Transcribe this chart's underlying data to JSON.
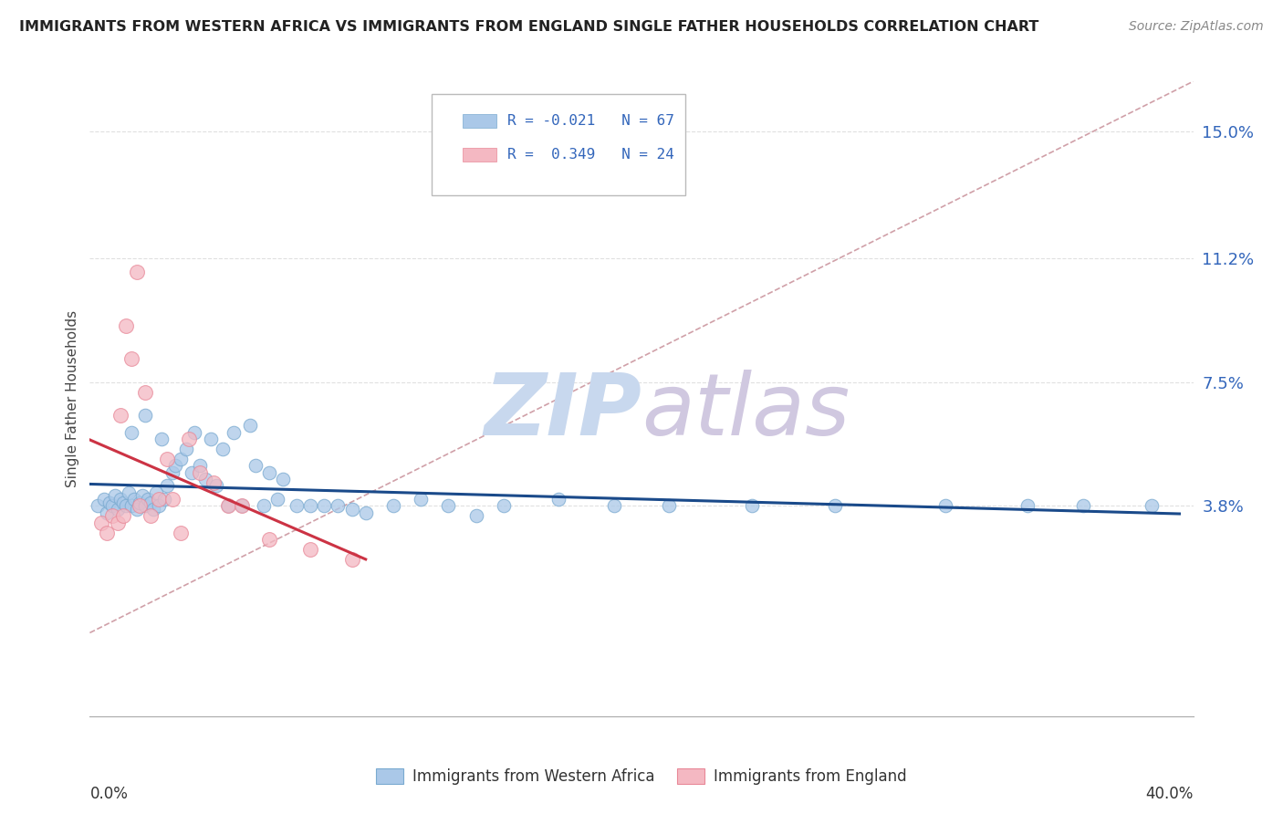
{
  "title": "IMMIGRANTS FROM WESTERN AFRICA VS IMMIGRANTS FROM ENGLAND SINGLE FATHER HOUSEHOLDS CORRELATION CHART",
  "source": "Source: ZipAtlas.com",
  "ylabel": "Single Father Households",
  "ytick_labels": [
    "3.8%",
    "7.5%",
    "11.2%",
    "15.0%"
  ],
  "ytick_values": [
    0.038,
    0.075,
    0.112,
    0.15
  ],
  "xlim": [
    0.0,
    0.4
  ],
  "ylim": [
    -0.025,
    0.165
  ],
  "legend_blue_R": "R = -0.021",
  "legend_blue_N": "N = 67",
  "legend_pink_R": "R =  0.349",
  "legend_pink_N": "N = 24",
  "blue_color": "#aac8e8",
  "pink_color": "#f4b8c2",
  "blue_scatter_edge": "#7aaad0",
  "pink_scatter_edge": "#e88898",
  "blue_line_color": "#1a4a8a",
  "pink_line_color": "#cc3344",
  "ref_line_color": "#d0a0a8",
  "watermark_zip_color": "#c8d8ee",
  "watermark_atlas_color": "#d0c8e0",
  "grid_color": "#e0e0e0",
  "blue_scatter_x": [
    0.003,
    0.005,
    0.006,
    0.007,
    0.008,
    0.009,
    0.01,
    0.011,
    0.012,
    0.013,
    0.014,
    0.015,
    0.015,
    0.016,
    0.017,
    0.018,
    0.019,
    0.02,
    0.02,
    0.021,
    0.022,
    0.023,
    0.024,
    0.025,
    0.026,
    0.027,
    0.028,
    0.03,
    0.031,
    0.033,
    0.035,
    0.037,
    0.038,
    0.04,
    0.042,
    0.044,
    0.046,
    0.048,
    0.05,
    0.052,
    0.055,
    0.058,
    0.06,
    0.063,
    0.065,
    0.068,
    0.07,
    0.075,
    0.08,
    0.085,
    0.09,
    0.095,
    0.1,
    0.11,
    0.12,
    0.13,
    0.14,
    0.15,
    0.17,
    0.19,
    0.21,
    0.24,
    0.27,
    0.31,
    0.34,
    0.36,
    0.385
  ],
  "blue_scatter_y": [
    0.038,
    0.04,
    0.036,
    0.039,
    0.038,
    0.041,
    0.037,
    0.04,
    0.039,
    0.038,
    0.042,
    0.038,
    0.06,
    0.04,
    0.037,
    0.039,
    0.041,
    0.038,
    0.065,
    0.04,
    0.039,
    0.037,
    0.042,
    0.038,
    0.058,
    0.04,
    0.044,
    0.048,
    0.05,
    0.052,
    0.055,
    0.048,
    0.06,
    0.05,
    0.046,
    0.058,
    0.044,
    0.055,
    0.038,
    0.06,
    0.038,
    0.062,
    0.05,
    0.038,
    0.048,
    0.04,
    0.046,
    0.038,
    0.038,
    0.038,
    0.038,
    0.037,
    0.036,
    0.038,
    0.04,
    0.038,
    0.035,
    0.038,
    0.04,
    0.038,
    0.038,
    0.038,
    0.038,
    0.038,
    0.038,
    0.038,
    0.038
  ],
  "pink_scatter_x": [
    0.004,
    0.006,
    0.008,
    0.01,
    0.011,
    0.012,
    0.013,
    0.015,
    0.017,
    0.018,
    0.02,
    0.022,
    0.025,
    0.028,
    0.03,
    0.033,
    0.036,
    0.04,
    0.045,
    0.05,
    0.055,
    0.065,
    0.08,
    0.095
  ],
  "pink_scatter_y": [
    0.033,
    0.03,
    0.035,
    0.033,
    0.065,
    0.035,
    0.092,
    0.082,
    0.108,
    0.038,
    0.072,
    0.035,
    0.04,
    0.052,
    0.04,
    0.03,
    0.058,
    0.048,
    0.045,
    0.038,
    0.038,
    0.028,
    0.025,
    0.022
  ],
  "pink_trend_x": [
    0.0,
    0.1
  ],
  "blue_trend_x": [
    0.0,
    0.395
  ]
}
